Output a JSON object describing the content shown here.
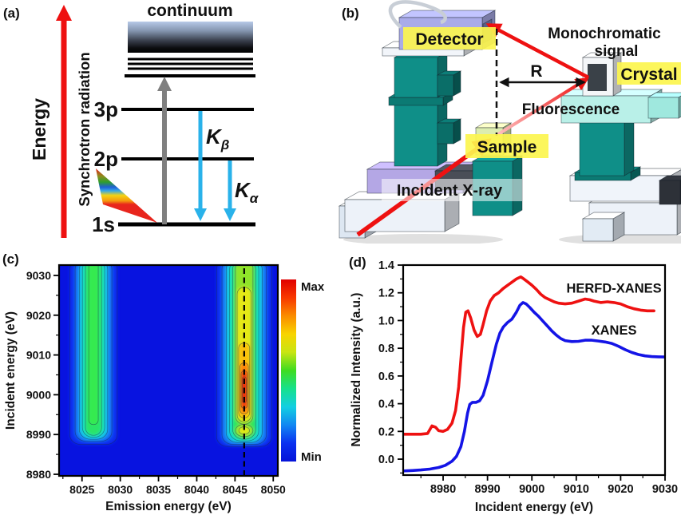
{
  "colors": {
    "beam_red": "#ee1111",
    "cyan_arrow": "#29b2ea",
    "gray_arrow": "#7f7f7f",
    "continuum_text": "#5d6b85",
    "synchrotron_text": "#8c8c8c",
    "label_blue": "#1616dd",
    "label_highlight_yellow": "#fcf54e",
    "heatmap_background": "#0813e0"
  },
  "panel_a": {
    "label": "(a)",
    "energy_axis": "Energy",
    "synchrotron": "Synchrotron radiation",
    "continuum": "continuum",
    "levels": [
      "3p",
      "2p",
      "1s"
    ],
    "transitions": [
      {
        "main": "K",
        "sub": "β"
      },
      {
        "main": "K",
        "sub": "α"
      }
    ]
  },
  "panel_b": {
    "label": "(b)",
    "annotations": {
      "detector": "Detector",
      "monochromatic_1": "Monochromatic",
      "monochromatic_2": "signal",
      "crystal": "Crystal",
      "r_distance": "R",
      "fluorescence": "Fluorescence",
      "sample": "Sample",
      "incident": "Incident X-ray"
    }
  },
  "chart_data": [
    {
      "id": "panel_c",
      "panel_label": "(c)",
      "type": "heatmap",
      "xlabel": "Emission energy (eV)",
      "ylabel": "Incident energy (eV)",
      "xlim": [
        8022,
        8050.6
      ],
      "ylim": [
        8979.6,
        9032.6
      ],
      "xticks": [
        8025,
        8030,
        8035,
        8040,
        8045,
        8050
      ],
      "yticks": [
        8980,
        8990,
        9000,
        9010,
        9020,
        9030
      ],
      "x_minor_step": 2.5,
      "y_minor_step": 5,
      "background_color": "#0813e0",
      "contour_color": "rgba(30,45,75,0.55)",
      "dashed_line_x": 8046.2,
      "colorbar": {
        "max_label": "Max",
        "min_label": "Min",
        "colormap": "jet",
        "colors_top_to_bottom": [
          "#e00000",
          "#f83800",
          "#fa8c00",
          "#f8d400",
          "#c8e512",
          "#3fdc20",
          "#16e18c",
          "#12cfe2",
          "#1287f2",
          "#0a30f0",
          "#0513d8"
        ]
      },
      "features": [
        {
          "name": "Kbeta-satellite emission ~8026.5 eV",
          "cx": 8026.5,
          "bands": [
            {
              "color": "#0b31f0",
              "hw": 3.1,
              "y0": 8987.5,
              "y1": 9034
            },
            {
              "color": "#1277f5",
              "hw": 2.4,
              "y0": 8988.3,
              "y1": 9034
            },
            {
              "color": "#15c8e8",
              "hw": 1.85,
              "y0": 8988.8,
              "y1": 9034
            },
            {
              "color": "#18e3b2",
              "hw": 1.45,
              "y0": 8989.3,
              "y1": 9034
            },
            {
              "color": "#2ce468",
              "hw": 1.05,
              "y0": 8989.8,
              "y1": 9034
            },
            {
              "color": "#35ea4f",
              "hw": 0.62,
              "y0": 8992.5,
              "y1": 9034
            }
          ],
          "blobs": []
        },
        {
          "name": "Kbeta1,3 main emission ~8046 eV",
          "cx": 8046.2,
          "bands": [
            {
              "color": "#0b31f0",
              "hw": 3.6,
              "y0": 8987.0,
              "y1": 9034
            },
            {
              "color": "#1277f5",
              "hw": 2.9,
              "y0": 8987.5,
              "y1": 9034
            },
            {
              "color": "#15c8e8",
              "hw": 2.35,
              "y0": 8988.0,
              "y1": 9034
            },
            {
              "color": "#18e3b2",
              "hw": 1.9,
              "y0": 8988.4,
              "y1": 9034
            },
            {
              "color": "#2ce45c",
              "hw": 1.5,
              "y0": 8988.8,
              "y1": 9034
            },
            {
              "color": "#8fe42a",
              "hw": 1.15,
              "y0": 8992.6,
              "y1": 9034
            },
            {
              "color": "#e6e915",
              "hw": 0.92,
              "y0": 8993.2,
              "y1": 9027
            },
            {
              "color": "#fbbf0d",
              "hw": 0.72,
              "y0": 8994.2,
              "y1": 9013
            },
            {
              "color": "#fb8408",
              "hw": 0.55,
              "y0": 8995.2,
              "y1": 9008
            },
            {
              "color": "#f23407",
              "hw": 0.4,
              "y0": 8996.6,
              "y1": 9006
            },
            {
              "color": "#e81007",
              "hw": 0.26,
              "y0": 8998.0,
              "y1": 9004.5
            }
          ],
          "blobs": [
            {
              "color": "#8fe42a",
              "cx": 8046.2,
              "cy": 8991.0,
              "rx": 1.15,
              "ry": 1.55
            },
            {
              "color": "#e6e915",
              "cx": 8046.2,
              "cy": 8991.0,
              "rx": 0.7,
              "ry": 0.95
            }
          ]
        }
      ]
    },
    {
      "id": "panel_d",
      "panel_label": "(d)",
      "type": "line",
      "xlabel": "Incident energy (eV)",
      "ylabel": "Normalized Intensity (a.u.)",
      "xlim": [
        8971,
        9030
      ],
      "ylim": [
        -0.115,
        1.4
      ],
      "xticks": [
        8980,
        8990,
        9000,
        9010,
        9020,
        9030
      ],
      "yticks": [
        0,
        0.2,
        0.4,
        0.6,
        0.8,
        1.0,
        1.2,
        1.4
      ],
      "ytick_labels": [
        "0.0",
        "0.2",
        "0.4",
        "0.6",
        "0.8",
        "1.0",
        "1.2",
        "1.4"
      ],
      "x_minor_step": 5,
      "y_minor_step": 0.1,
      "series": [
        {
          "name": "HERFD-XANES",
          "color": "#ee1111",
          "points": [
            [
              8971,
              0.18
            ],
            [
              8973,
              0.18
            ],
            [
              8975,
              0.18
            ],
            [
              8976.5,
              0.185
            ],
            [
              8977.5,
              0.24
            ],
            [
              8978.3,
              0.23
            ],
            [
              8979,
              0.205
            ],
            [
              8980,
              0.2
            ],
            [
              8981,
              0.215
            ],
            [
              8982,
              0.26
            ],
            [
              8982.8,
              0.35
            ],
            [
              8983.5,
              0.52
            ],
            [
              8984,
              0.72
            ],
            [
              8984.6,
              0.95
            ],
            [
              8985.1,
              1.06
            ],
            [
              8985.6,
              1.07
            ],
            [
              8986.2,
              1.02
            ],
            [
              8987,
              0.93
            ],
            [
              8987.7,
              0.885
            ],
            [
              8988.4,
              0.9
            ],
            [
              8989,
              0.97
            ],
            [
              8989.8,
              1.07
            ],
            [
              8990.6,
              1.14
            ],
            [
              8991.5,
              1.18
            ],
            [
              8992.5,
              1.2
            ],
            [
              8993.5,
              1.23
            ],
            [
              8995,
              1.265
            ],
            [
              8996.5,
              1.3
            ],
            [
              8997.5,
              1.315
            ],
            [
              8998.2,
              1.3
            ],
            [
              8999,
              1.28
            ],
            [
              9000,
              1.255
            ],
            [
              9001,
              1.225
            ],
            [
              9002,
              1.19
            ],
            [
              9003,
              1.165
            ],
            [
              9004,
              1.15
            ],
            [
              9005,
              1.135
            ],
            [
              9006,
              1.125
            ],
            [
              9007.5,
              1.12
            ],
            [
              9009,
              1.125
            ],
            [
              9010.5,
              1.14
            ],
            [
              9012,
              1.155
            ],
            [
              9013,
              1.15
            ],
            [
              9014,
              1.14
            ],
            [
              9015.5,
              1.13
            ],
            [
              9017,
              1.135
            ],
            [
              9018.5,
              1.13
            ],
            [
              9020,
              1.12
            ],
            [
              9021.5,
              1.1
            ],
            [
              9023,
              1.085
            ],
            [
              9024.5,
              1.075
            ],
            [
              9026,
              1.07
            ],
            [
              9027.5,
              1.07
            ]
          ]
        },
        {
          "name": "XANES",
          "color": "#1414e6",
          "points": [
            [
              8971,
              -0.085
            ],
            [
              8973,
              -0.082
            ],
            [
              8975,
              -0.078
            ],
            [
              8977,
              -0.072
            ],
            [
              8979,
              -0.06
            ],
            [
              8980.5,
              -0.045
            ],
            [
              8982,
              -0.015
            ],
            [
              8983,
              0.02
            ],
            [
              8984,
              0.09
            ],
            [
              8984.8,
              0.2
            ],
            [
              8985.5,
              0.33
            ],
            [
              8986,
              0.395
            ],
            [
              8986.6,
              0.41
            ],
            [
              8987.4,
              0.41
            ],
            [
              8988.2,
              0.42
            ],
            [
              8989,
              0.46
            ],
            [
              8990,
              0.565
            ],
            [
              8991,
              0.7
            ],
            [
              8992,
              0.83
            ],
            [
              8992.8,
              0.91
            ],
            [
              8993.6,
              0.955
            ],
            [
              8994.5,
              0.985
            ],
            [
              8995.5,
              1.01
            ],
            [
              8996.5,
              1.06
            ],
            [
              8997.3,
              1.11
            ],
            [
              8998,
              1.13
            ],
            [
              8998.7,
              1.12
            ],
            [
              8999.5,
              1.095
            ],
            [
              9000.5,
              1.06
            ],
            [
              9001.5,
              1.03
            ],
            [
              9002.5,
              0.995
            ],
            [
              9003.5,
              0.96
            ],
            [
              9004.5,
              0.925
            ],
            [
              9005.5,
              0.895
            ],
            [
              9006.5,
              0.87
            ],
            [
              9007.5,
              0.855
            ],
            [
              9009,
              0.848
            ],
            [
              9010.5,
              0.85
            ],
            [
              9012,
              0.858
            ],
            [
              9013.5,
              0.858
            ],
            [
              9015,
              0.852
            ],
            [
              9016.5,
              0.845
            ],
            [
              9018,
              0.835
            ],
            [
              9019.5,
              0.815
            ],
            [
              9021,
              0.79
            ],
            [
              9022.5,
              0.77
            ],
            [
              9024,
              0.755
            ],
            [
              9025.5,
              0.745
            ],
            [
              9027,
              0.74
            ],
            [
              9028.5,
              0.738
            ],
            [
              9030,
              0.737
            ]
          ]
        }
      ],
      "annotations": [
        {
          "text": "HERFD-XANES",
          "x": 9018.5,
          "y": 1.2
        },
        {
          "text": "XANES",
          "x": 9018.5,
          "y": 0.9
        }
      ]
    }
  ]
}
